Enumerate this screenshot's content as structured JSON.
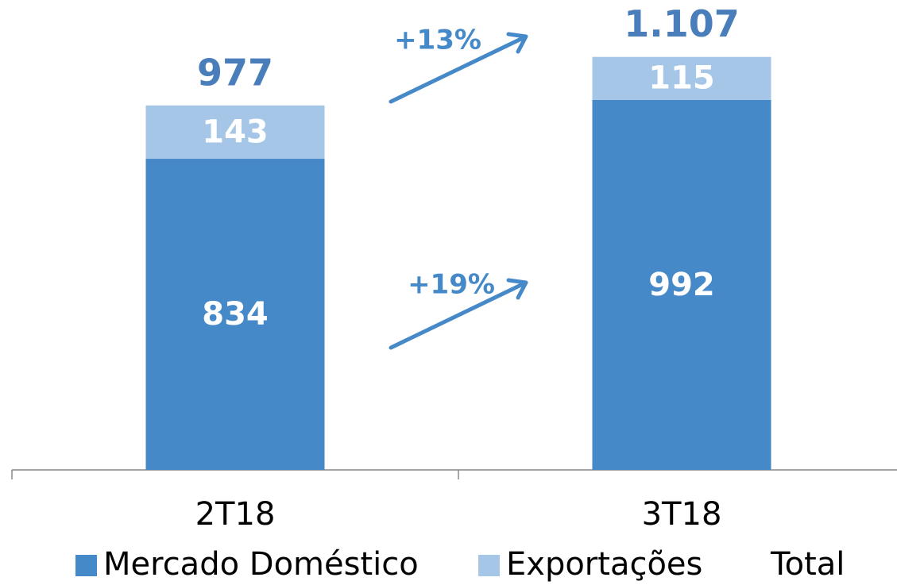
{
  "chart_data": {
    "type": "stacked-bar",
    "categories": [
      "2T18",
      "3T18"
    ],
    "series": [
      {
        "name": "Mercado Doméstico",
        "color": "#4689c8",
        "values": [
          834,
          992
        ]
      },
      {
        "name": "Exportações",
        "color": "#a5c6e6",
        "values": [
          143,
          115
        ]
      },
      {
        "name": "Total",
        "values": [
          977,
          1107
        ],
        "value_labels": [
          "977",
          "1.107"
        ]
      }
    ],
    "ylim": [
      0,
      1200
    ],
    "annotations": [
      "+13%",
      "+19%"
    ]
  }
}
